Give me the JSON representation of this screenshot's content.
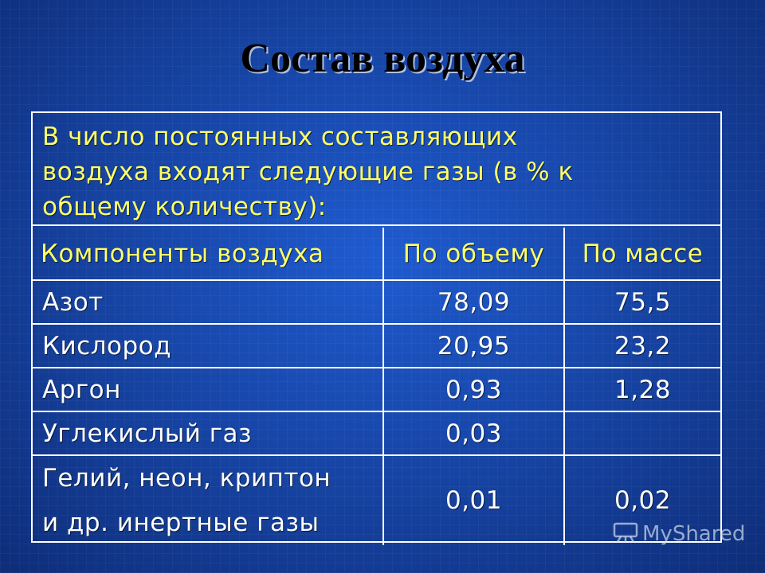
{
  "slide": {
    "title": "Состав воздуха",
    "intro_lines": [
      "В число постоянных составляющих",
      "воздуха входят следующие газы (в % к",
      "общему количеству):"
    ]
  },
  "table": {
    "headers": [
      "Компоненты воздуха",
      "По объему",
      "По массе"
    ],
    "rows": [
      {
        "name": "Азот",
        "volume": "78,09",
        "mass": "75,5"
      },
      {
        "name": "Кислород",
        "volume": "20,95",
        "mass": "23,2"
      },
      {
        "name": "Аргон",
        "volume": "0,93",
        "mass": "1,28"
      },
      {
        "name": "Углекислый газ",
        "volume": "0,03",
        "mass": ""
      },
      {
        "name_lines": [
          "Гелий, неон, криптон",
          "и др. инертные газы"
        ],
        "volume": "0,01",
        "mass": "0,02"
      }
    ]
  },
  "watermark": {
    "text": "MyShared",
    "icon": "presentation-board-icon"
  },
  "colors": {
    "heading_text": "#ffff66",
    "cell_text": "#ffffff",
    "background": "#1746a8",
    "title_text": "#000000"
  }
}
